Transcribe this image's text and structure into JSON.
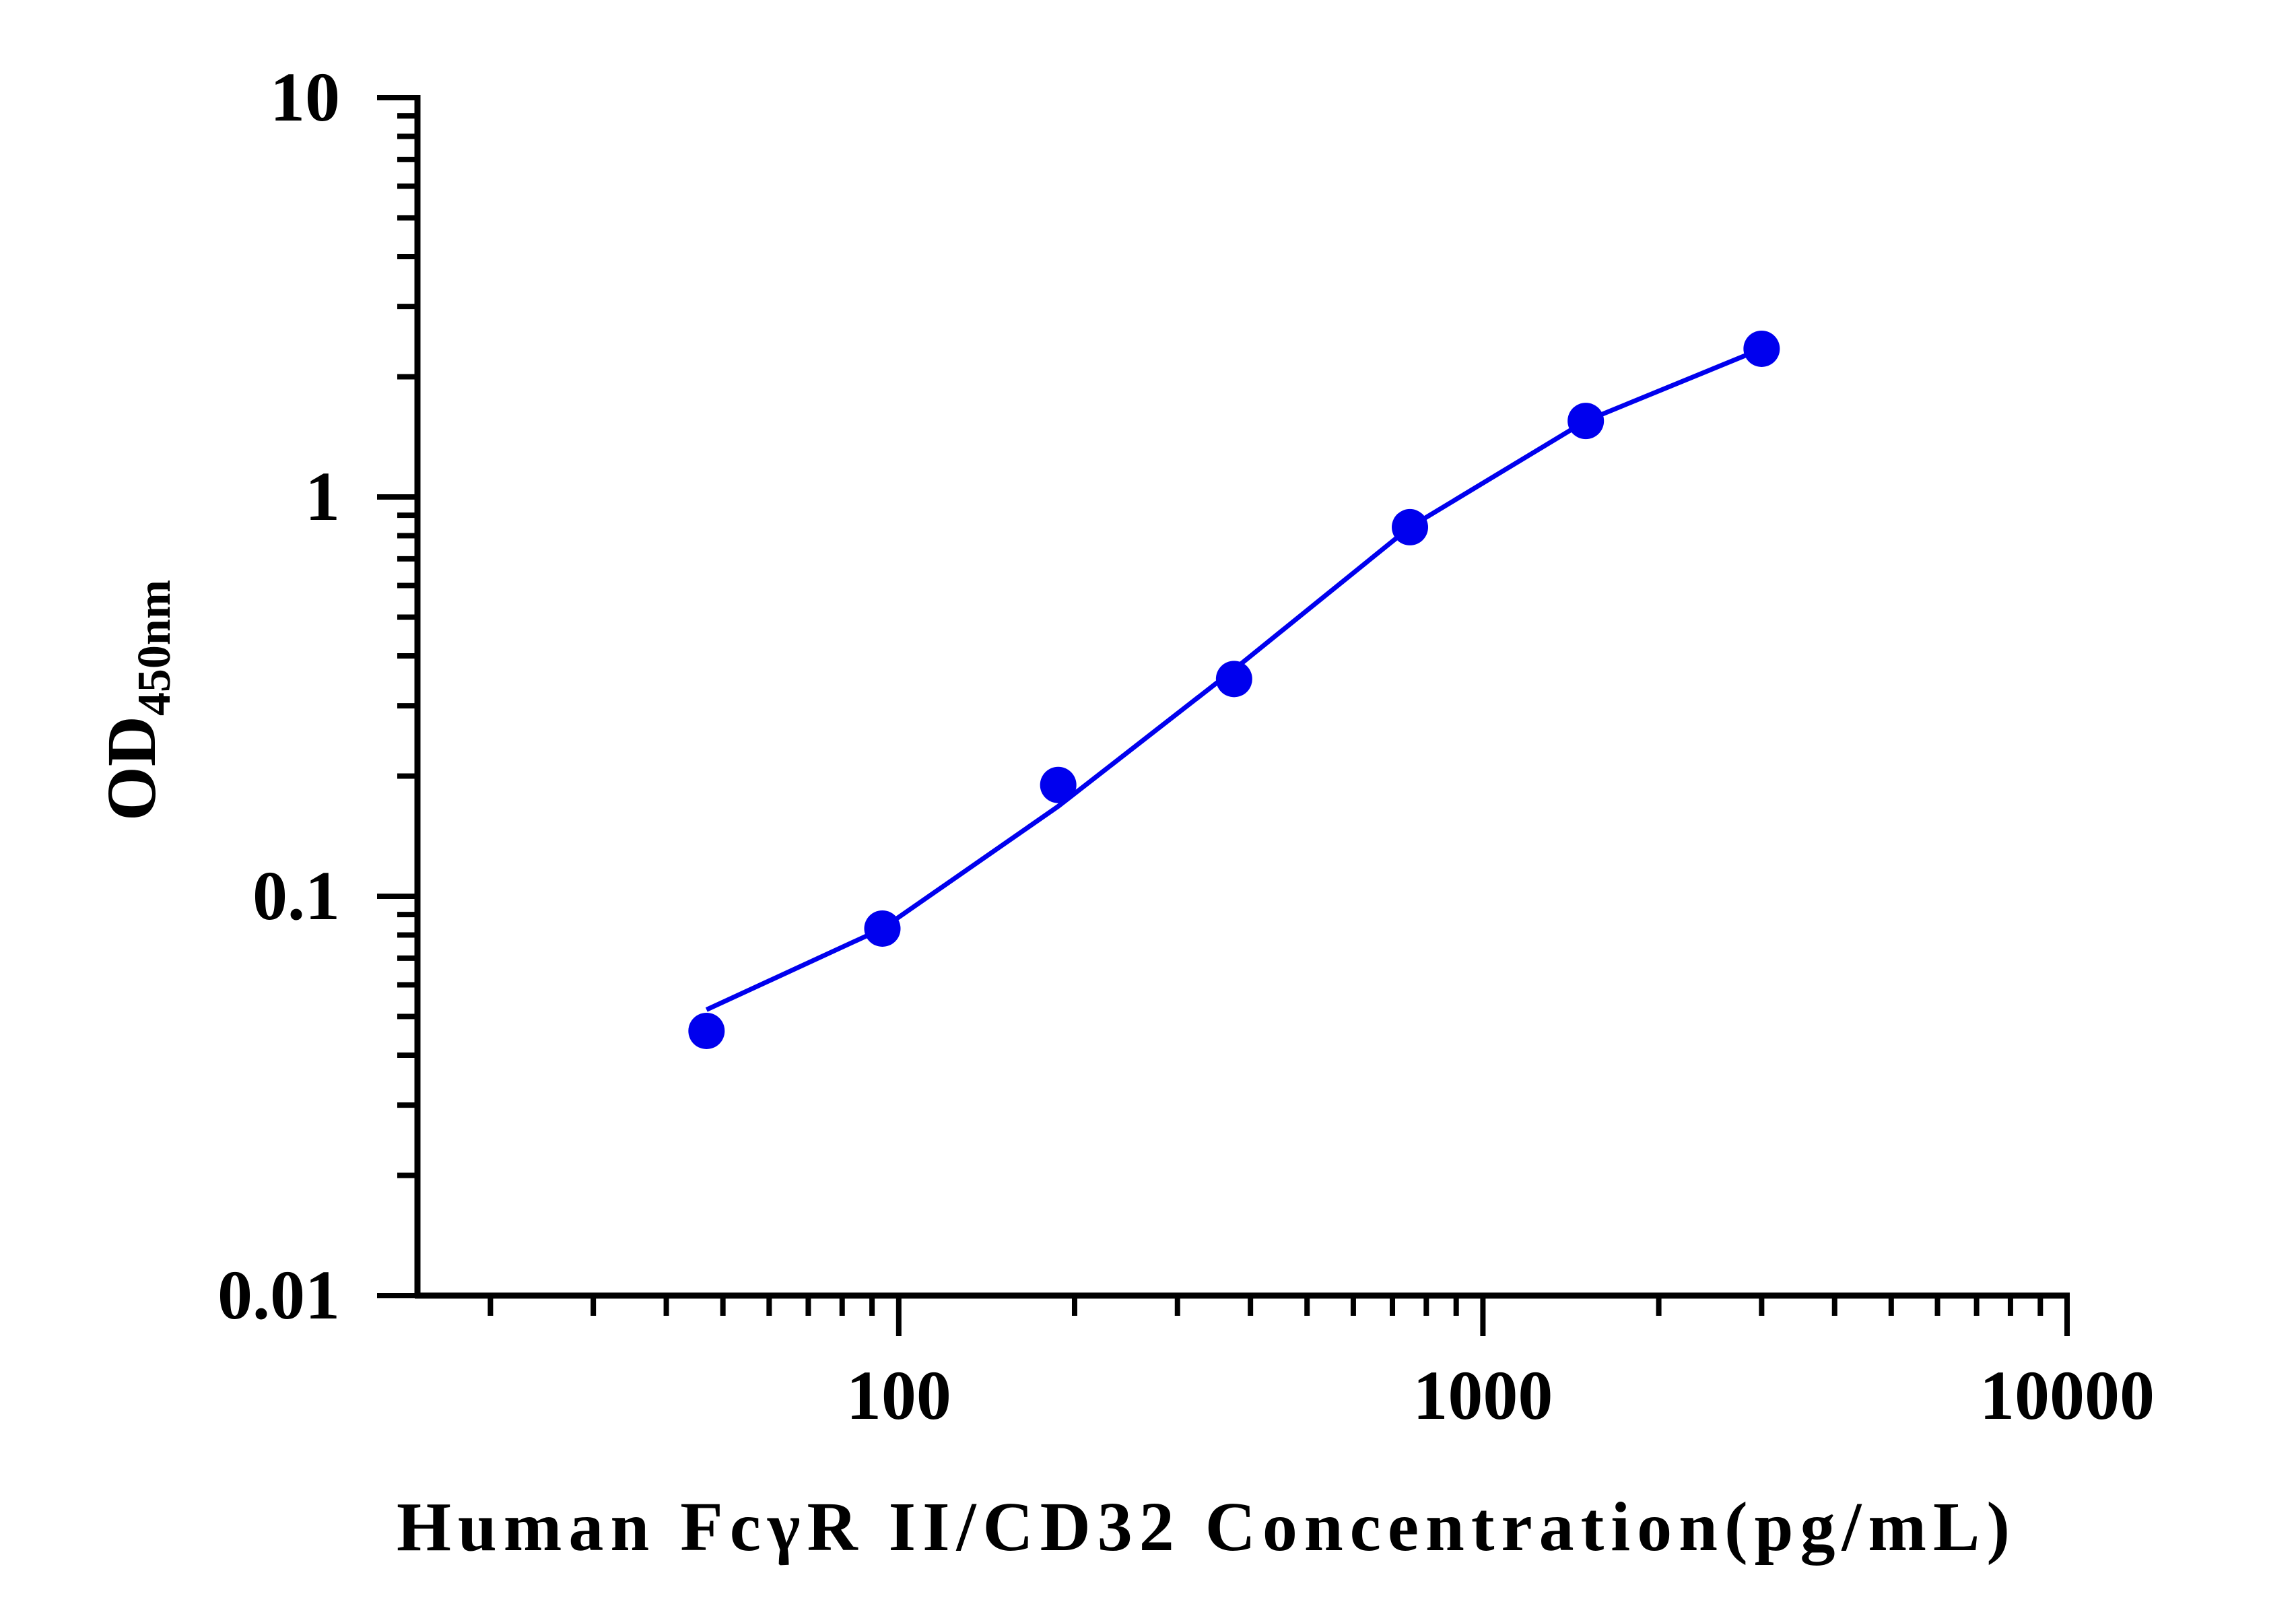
{
  "chart_data": {
    "type": "scatter",
    "xlabel": "Human FcγR II/CD32 Concentration(pg/mL)",
    "ylabel_main": "OD",
    "ylabel_sub": "450nm",
    "x_scale": "log",
    "y_scale": "log",
    "xlim": [
      15,
      10000
    ],
    "ylim": [
      0.01,
      10
    ],
    "x_ticks": [
      {
        "value": 100,
        "label": "100"
      },
      {
        "value": 1000,
        "label": "1000"
      },
      {
        "value": 10000,
        "label": "10000"
      }
    ],
    "y_ticks": [
      {
        "value": 0.01,
        "label": "0.01"
      },
      {
        "value": 0.1,
        "label": "0.1"
      },
      {
        "value": 1,
        "label": "1"
      },
      {
        "value": 10,
        "label": "10"
      }
    ],
    "grid": false,
    "color": "#0000ee",
    "series": [
      {
        "points": [
          {
            "x": 46.875,
            "y": 0.046
          },
          {
            "x": 93.75,
            "y": 0.083
          },
          {
            "x": 187.5,
            "y": 0.19
          },
          {
            "x": 375,
            "y": 0.35
          },
          {
            "x": 750,
            "y": 0.84
          },
          {
            "x": 1500,
            "y": 1.55
          },
          {
            "x": 3000,
            "y": 2.35
          }
        ],
        "fit_line": [
          {
            "x": 46.875,
            "y": 0.052
          },
          {
            "x": 93.75,
            "y": 0.083
          },
          {
            "x": 187.5,
            "y": 0.168
          },
          {
            "x": 375,
            "y": 0.37
          },
          {
            "x": 750,
            "y": 0.84
          },
          {
            "x": 1500,
            "y": 1.55
          },
          {
            "x": 3000,
            "y": 2.35
          }
        ]
      }
    ]
  }
}
